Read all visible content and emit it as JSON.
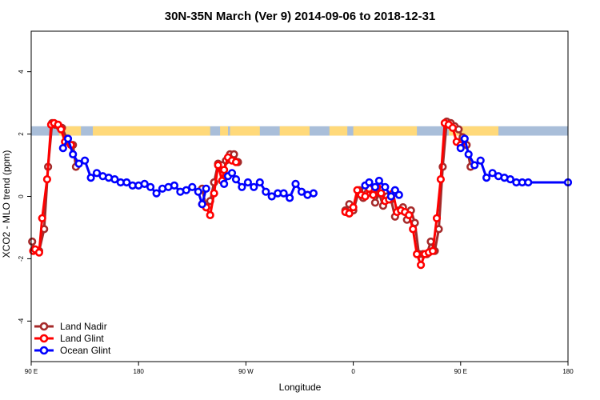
{
  "chart_data": {
    "type": "line",
    "title": "30N-35N March (Ver 9)   2014-09-06 to 2018-12-31",
    "xlabel": "Longitude",
    "ylabel": "XCO2 - MLO trend (ppm)",
    "xlim": [
      -90,
      180
    ],
    "ylim": [
      -5.3,
      5.3
    ],
    "xticks": [
      {
        "value": -90,
        "label": "90 E"
      },
      {
        "value": -36,
        "label": "180"
      },
      {
        "value": 18,
        "label": "90 W"
      },
      {
        "value": 72,
        "label": "0"
      },
      {
        "value": 126,
        "label": "90 E"
      },
      {
        "value": 180,
        "label": "180"
      }
    ],
    "yticks": [
      -4,
      -2,
      0,
      2,
      4
    ],
    "land_ocean_band": {
      "y_range": [
        1.95,
        2.25
      ],
      "land_color": "#FFD97A",
      "ocean_color": "#A9BED9",
      "land_segments": [
        [
          -76,
          -65
        ],
        [
          -59,
          0
        ],
        [
          5,
          9
        ],
        [
          10,
          25
        ],
        [
          35,
          50
        ],
        [
          60,
          69
        ],
        [
          72,
          104
        ],
        [
          120,
          145
        ]
      ]
    },
    "series": [
      {
        "name": "Land Nadir",
        "color": "#A52A2A",
        "segments": [
          [
            [
              -89.5,
              -1.45
            ],
            [
              -88.5,
              -1.7
            ],
            [
              -86,
              -1.75
            ],
            [
              -83.5,
              -1.05
            ],
            [
              -81.5,
              0.95
            ],
            [
              -79.5,
              2.35
            ],
            [
              -78,
              2.3
            ],
            [
              -76,
              2.25
            ],
            [
              -74.5,
              2.2
            ],
            [
              -72,
              1.85
            ],
            [
              -69,
              1.65
            ],
            [
              -67.5,
              0.95
            ]
          ],
          [
            [
              -4,
              0.25
            ],
            [
              -2,
              -0.35
            ],
            [
              0,
              -0.15
            ],
            [
              2,
              0.45
            ],
            [
              4,
              1.05
            ],
            [
              6,
              1.0
            ],
            [
              8,
              1.15
            ],
            [
              10,
              1.35
            ],
            [
              12,
              1.35
            ],
            [
              14,
              1.1
            ]
          ],
          [
            [
              68,
              -0.45
            ],
            [
              70,
              -0.25
            ],
            [
              72,
              -0.45
            ],
            [
              75,
              0.2
            ],
            [
              77,
              -0.05
            ],
            [
              79,
              0.1
            ],
            [
              81,
              0.2
            ],
            [
              83,
              -0.2
            ],
            [
              85,
              0.1
            ],
            [
              87,
              -0.3
            ],
            [
              89,
              0.0
            ],
            [
              91,
              -0.1
            ],
            [
              93,
              -0.65
            ],
            [
              95,
              -0.45
            ],
            [
              97,
              -0.35
            ],
            [
              99,
              -0.75
            ],
            [
              101,
              -0.45
            ],
            [
              103,
              -0.85
            ],
            [
              105,
              -1.85
            ],
            [
              107,
              -1.85
            ],
            [
              109,
              -1.85
            ],
            [
              111,
              -1.45
            ],
            [
              113,
              -1.75
            ],
            [
              115,
              -1.05
            ],
            [
              117,
              0.95
            ],
            [
              119,
              2.4
            ],
            [
              121,
              2.35
            ],
            [
              123,
              2.25
            ],
            [
              125,
              2.15
            ],
            [
              127,
              1.9
            ],
            [
              129,
              1.65
            ],
            [
              131,
              0.95
            ]
          ]
        ]
      },
      {
        "name": "Land Glint",
        "color": "#FF0000",
        "segments": [
          [
            [
              -89,
              -1.75
            ],
            [
              -88,
              -1.7
            ],
            [
              -86,
              -1.8
            ],
            [
              -84.5,
              -0.7
            ],
            [
              -82,
              0.55
            ],
            [
              -80,
              2.3
            ],
            [
              -78.5,
              2.35
            ],
            [
              -76.5,
              2.3
            ],
            [
              -75,
              2.15
            ],
            [
              -73,
              1.75
            ],
            [
              -70,
              1.65
            ]
          ],
          [
            [
              -4,
              -0.25
            ],
            [
              -2,
              -0.35
            ],
            [
              0,
              -0.6
            ],
            [
              2,
              0.1
            ],
            [
              4,
              1.0
            ],
            [
              6,
              0.5
            ],
            [
              7,
              0.85
            ],
            [
              9,
              1.25
            ],
            [
              11,
              1.15
            ],
            [
              13,
              1.1
            ]
          ],
          [
            [
              68,
              -0.5
            ],
            [
              70,
              -0.55
            ],
            [
              72,
              -0.35
            ],
            [
              74,
              0.2
            ],
            [
              76,
              0.05
            ],
            [
              78,
              0.0
            ],
            [
              80,
              0.25
            ],
            [
              82,
              0.05
            ],
            [
              84,
              0.3
            ],
            [
              86,
              0.1
            ],
            [
              88,
              -0.15
            ],
            [
              90,
              -0.1
            ],
            [
              92,
              0.1
            ],
            [
              94,
              -0.5
            ],
            [
              96,
              -0.45
            ],
            [
              98,
              -0.5
            ],
            [
              100,
              -0.6
            ],
            [
              102,
              -1.05
            ],
            [
              104,
              -1.85
            ],
            [
              106,
              -2.2
            ],
            [
              108,
              -1.85
            ],
            [
              110,
              -1.8
            ],
            [
              112,
              -1.75
            ],
            [
              114,
              -0.7
            ],
            [
              116,
              0.55
            ],
            [
              118,
              2.35
            ],
            [
              120,
              2.3
            ],
            [
              122,
              2.2
            ],
            [
              124,
              1.75
            ],
            [
              126,
              1.65
            ]
          ]
        ]
      },
      {
        "name": "Ocean Glint",
        "color": "#0000FF",
        "segments": [
          [
            [
              -74,
              1.55
            ],
            [
              -71.5,
              1.85
            ],
            [
              -69,
              1.35
            ],
            [
              -66,
              1.05
            ],
            [
              -63,
              1.15
            ],
            [
              -60,
              0.6
            ],
            [
              -57,
              0.75
            ],
            [
              -54,
              0.65
            ],
            [
              -51,
              0.6
            ],
            [
              -48,
              0.55
            ],
            [
              -45,
              0.45
            ],
            [
              -42,
              0.45
            ],
            [
              -39,
              0.35
            ],
            [
              -36,
              0.35
            ],
            [
              -33,
              0.4
            ],
            [
              -30,
              0.3
            ],
            [
              -27,
              0.1
            ],
            [
              -24,
              0.25
            ],
            [
              -21,
              0.3
            ],
            [
              -18,
              0.35
            ],
            [
              -15,
              0.15
            ],
            [
              -12,
              0.2
            ],
            [
              -9,
              0.3
            ],
            [
              -6,
              0.15
            ],
            [
              -4,
              -0.25
            ],
            [
              -2,
              0.25
            ]
          ],
          [
            [
              7,
              0.4
            ],
            [
              9,
              0.65
            ],
            [
              11,
              0.75
            ],
            [
              13,
              0.55
            ],
            [
              16,
              0.3
            ],
            [
              19,
              0.45
            ],
            [
              22,
              0.3
            ],
            [
              25,
              0.45
            ],
            [
              28,
              0.15
            ],
            [
              31,
              0.0
            ],
            [
              34,
              0.1
            ],
            [
              37,
              0.1
            ],
            [
              40,
              -0.05
            ],
            [
              43,
              0.4
            ],
            [
              46,
              0.15
            ],
            [
              49,
              0.05
            ],
            [
              52,
              0.1
            ]
          ],
          [
            [
              78,
              0.35
            ],
            [
              80,
              0.45
            ],
            [
              83,
              0.3
            ],
            [
              85,
              0.5
            ],
            [
              88,
              0.3
            ],
            [
              91,
              0.0
            ],
            [
              93,
              0.2
            ],
            [
              95,
              0.05
            ]
          ],
          [
            [
              126,
              1.55
            ],
            [
              128,
              1.85
            ],
            [
              130,
              1.35
            ],
            [
              133,
              1.0
            ],
            [
              136,
              1.15
            ],
            [
              139,
              0.6
            ],
            [
              142,
              0.75
            ],
            [
              145,
              0.65
            ],
            [
              148,
              0.6
            ],
            [
              151,
              0.55
            ],
            [
              154,
              0.45
            ],
            [
              157,
              0.45
            ],
            [
              160,
              0.45
            ],
            [
              180,
              0.45
            ]
          ]
        ]
      }
    ],
    "legend": {
      "position": "bottom-left",
      "entries": [
        {
          "label": "Land Nadir",
          "color": "#A52A2A"
        },
        {
          "label": "Land Glint",
          "color": "#FF0000"
        },
        {
          "label": "Ocean Glint",
          "color": "#0000FF"
        }
      ]
    }
  }
}
